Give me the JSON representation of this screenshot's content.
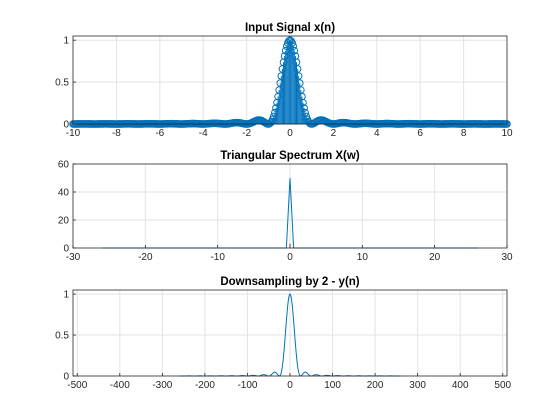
{
  "colors": {
    "series": "#0072BD",
    "stem_base": "#A2142F",
    "axis": "#262626",
    "grid": "#e3e3e3"
  },
  "chart_data": [
    {
      "type": "stem",
      "title": "Input Signal x(n)",
      "xlabel": "",
      "ylabel": "",
      "xlim": [
        -10,
        10
      ],
      "ylim": [
        0,
        1.05
      ],
      "xticks": [
        -10,
        -8,
        -6,
        -4,
        -2,
        0,
        2,
        4,
        6,
        8,
        10
      ],
      "yticks": [
        0,
        0.5,
        1
      ],
      "grid": true,
      "signal": "sinc(x)^2",
      "n_samples": 401,
      "series": [
        {
          "x_start": -10,
          "x_end": 10,
          "values_description_peak": 1
        }
      ]
    },
    {
      "type": "line",
      "title": "Triangular Spectrum X(w)",
      "xlabel": "",
      "ylabel": "",
      "xlim": [
        -30,
        30
      ],
      "ylim": [
        0,
        60
      ],
      "xticks": [
        -30,
        -20,
        -10,
        0,
        10,
        20,
        30
      ],
      "yticks": [
        0,
        20,
        40,
        60
      ],
      "grid": true,
      "series": [
        {
          "x": [
            -26,
            -1,
            -0.5,
            0,
            0.5,
            1,
            26
          ],
          "y": [
            0,
            0,
            0,
            50,
            0,
            0,
            0
          ]
        }
      ]
    },
    {
      "type": "line",
      "title": "Downsampling by 2 - y(n)",
      "xlabel": "",
      "ylabel": "",
      "xlim": [
        -510,
        510
      ],
      "ylim": [
        0,
        1.05
      ],
      "xticks": [
        -500,
        -400,
        -300,
        -200,
        -100,
        0,
        100,
        200,
        300,
        400,
        500
      ],
      "yticks": [
        0,
        0.5,
        1
      ],
      "grid": true,
      "series": [
        {
          "x_start": -260,
          "x_end": 260,
          "peak": 1,
          "shape": "sinc^2, first null at 25"
        }
      ]
    }
  ]
}
